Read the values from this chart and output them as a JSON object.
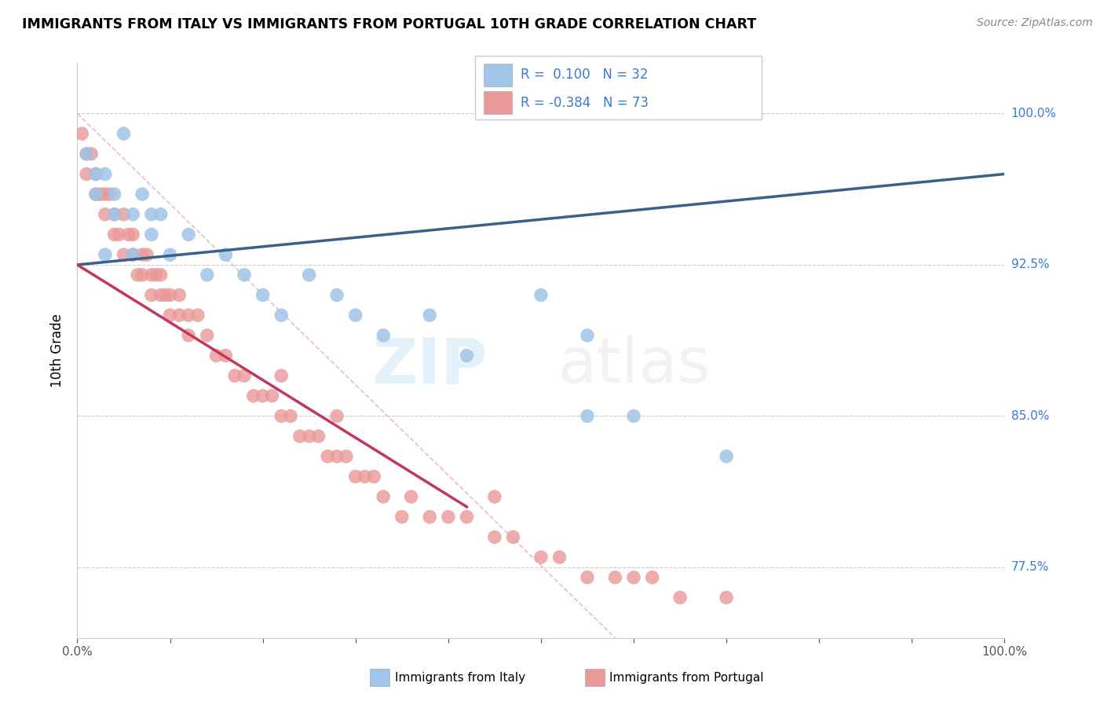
{
  "title": "IMMIGRANTS FROM ITALY VS IMMIGRANTS FROM PORTUGAL 10TH GRADE CORRELATION CHART",
  "source": "Source: ZipAtlas.com",
  "ylabel": "10th Grade",
  "xlim": [
    0,
    100
  ],
  "ylim": [
    74.0,
    102.5
  ],
  "yticks": [
    77.5,
    85.0,
    92.5,
    100.0
  ],
  "ytick_labels": [
    "77.5%",
    "85.0%",
    "92.5%",
    "100.0%"
  ],
  "color_italy": "#9fc5e8",
  "color_portugal": "#ea9999",
  "color_italy_line": "#3c5f8c",
  "color_portugal_line": "#c2385a",
  "color_diag_line": "#f4b8c8",
  "legend_label_italy": "Immigrants from Italy",
  "legend_label_portugal": "Immigrants from Portugal",
  "italy_trend_x0": 0,
  "italy_trend_y0": 92.5,
  "italy_trend_x1": 100,
  "italy_trend_y1": 97.0,
  "portugal_trend_x0": 0,
  "portugal_trend_y0": 92.5,
  "portugal_trend_x1": 42,
  "portugal_trend_y1": 80.5,
  "diag_x0": 0,
  "diag_y0": 100,
  "diag_x1": 58,
  "diag_y1": 74
}
